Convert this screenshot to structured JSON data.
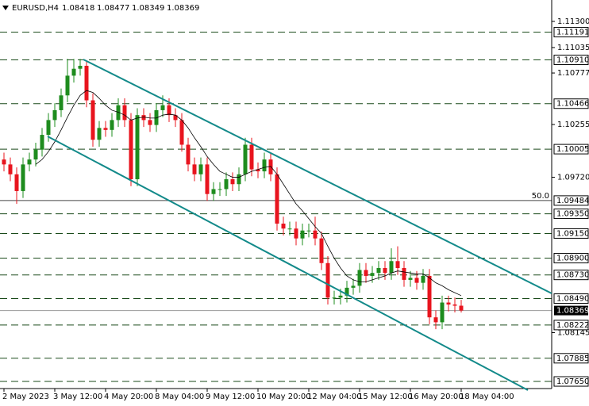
{
  "chart_data": {
    "type": "candlestick",
    "title": "EURUSD,H4",
    "categories": [
      "2 May 2023",
      null,
      null,
      null,
      null,
      null,
      null,
      null,
      "3 May 12:00",
      null,
      null,
      null,
      null,
      null,
      null,
      null,
      "4 May 20:00",
      null,
      null,
      null,
      null,
      null,
      null,
      null,
      "8 May 04:00",
      null,
      null,
      null,
      null,
      null,
      null,
      null,
      "9 May 12:00",
      null,
      null,
      null,
      null,
      null,
      null,
      null,
      "10 May 20:00",
      null,
      null,
      null,
      null,
      null,
      null,
      null,
      "12 May 04:00",
      null,
      null,
      null,
      null,
      null,
      null,
      null,
      "15 May 12:00",
      null,
      null,
      null,
      null,
      null,
      null,
      null,
      "16 May 20:00",
      null,
      null,
      null,
      null,
      null,
      null,
      null,
      "18 May 04:00"
    ],
    "open": [
      1.099,
      1.0985,
      1.0975,
      1.0958,
      1.0985,
      1.099,
      1.1,
      1.1015,
      1.103,
      1.104,
      1.1055,
      1.1075,
      1.1082,
      1.1085,
      1.105,
      1.101,
      1.1022,
      1.102,
      1.103,
      1.1045,
      1.103,
      1.097,
      1.1035,
      1.103,
      1.1025,
      1.104,
      1.1045,
      1.1035,
      1.103,
      1.1005,
      1.0985,
      1.0975,
      1.0985,
      1.0955,
      1.096,
      1.096,
      1.097,
      1.0965,
      1.0975,
      1.1005,
      1.098,
      1.0978,
      1.099,
      1.0975,
      1.0925,
      1.092,
      1.092,
      1.091,
      1.0918,
      1.0918,
      1.091,
      1.0885,
      1.085,
      1.085,
      1.0852,
      1.086,
      1.0862,
      1.0878,
      1.0872,
      1.0875,
      1.088,
      1.0875,
      1.0887,
      1.088,
      1.0868,
      1.087,
      1.0865,
      1.0872,
      1.083,
      1.0825,
      1.0845,
      1.0843,
      1.08418
    ],
    "high": [
      1.0997,
      1.0992,
      1.0982,
      1.0992,
      1.0997,
      1.1007,
      1.1022,
      1.1037,
      1.1047,
      1.1062,
      1.1092,
      1.1092,
      1.1092,
      1.109,
      1.1057,
      1.1029,
      1.1029,
      1.1037,
      1.1052,
      1.1052,
      1.1037,
      1.1042,
      1.1042,
      1.1037,
      1.1047,
      1.1055,
      1.1052,
      1.1042,
      1.1037,
      1.1012,
      1.0992,
      1.0992,
      1.0992,
      1.0967,
      1.0967,
      1.0977,
      1.0977,
      1.0982,
      1.1012,
      1.1012,
      1.0987,
      1.0997,
      1.0997,
      1.0982,
      1.0932,
      1.0927,
      1.0927,
      1.0925,
      1.0925,
      1.0932,
      1.0917,
      1.0892,
      1.0857,
      1.0859,
      1.0867,
      1.0869,
      1.0885,
      1.0885,
      1.0882,
      1.0887,
      1.0887,
      1.09,
      1.0902,
      1.0887,
      1.0877,
      1.0877,
      1.0879,
      1.0879,
      1.0837,
      1.0852,
      1.0852,
      1.085,
      1.08477
    ],
    "low": [
      1.0978,
      1.0968,
      1.0945,
      1.0951,
      1.0978,
      1.0983,
      1.0993,
      1.1008,
      1.1023,
      1.1033,
      1.1048,
      1.1068,
      1.1075,
      1.1043,
      1.1003,
      1.1003,
      1.1013,
      1.1013,
      1.1023,
      1.1023,
      1.0963,
      1.0963,
      1.1023,
      1.1018,
      1.1018,
      1.1033,
      1.1028,
      1.1023,
      1.0998,
      1.0978,
      1.0968,
      1.0968,
      1.0948,
      1.0948,
      1.0953,
      1.0953,
      1.0958,
      1.0958,
      1.0968,
      1.0973,
      1.0971,
      1.0971,
      1.0968,
      1.0918,
      1.0913,
      1.0913,
      1.0903,
      1.0903,
      1.0911,
      1.0903,
      1.0878,
      1.0843,
      1.0843,
      1.0843,
      1.0845,
      1.0853,
      1.0855,
      1.0865,
      1.0865,
      1.0868,
      1.0868,
      1.0868,
      1.0873,
      1.0861,
      1.0861,
      1.0858,
      1.0858,
      1.0823,
      1.0818,
      1.0818,
      1.0836,
      1.0835,
      1.08349
    ],
    "close": [
      1.0985,
      1.0975,
      1.0958,
      1.0985,
      1.099,
      1.1,
      1.1015,
      1.103,
      1.104,
      1.1055,
      1.1075,
      1.1082,
      1.1085,
      1.105,
      1.101,
      1.1022,
      1.102,
      1.103,
      1.1045,
      1.103,
      1.097,
      1.1035,
      1.103,
      1.1025,
      1.104,
      1.1045,
      1.1035,
      1.103,
      1.1005,
      1.0985,
      1.0975,
      1.0985,
      1.0955,
      1.096,
      1.096,
      1.097,
      1.0965,
      1.0975,
      1.1005,
      1.098,
      1.0978,
      1.099,
      1.0975,
      1.0925,
      1.092,
      1.092,
      1.091,
      1.0918,
      1.0918,
      1.091,
      1.0885,
      1.085,
      1.085,
      1.0852,
      1.086,
      1.0862,
      1.0878,
      1.0872,
      1.0875,
      1.088,
      1.0875,
      1.0887,
      1.088,
      1.0868,
      1.087,
      1.0865,
      1.0872,
      1.083,
      1.0825,
      1.0845,
      1.0843,
      1.08418,
      1.08369
    ],
    "ma": [
      null,
      null,
      null,
      null,
      null,
      1.0985,
      1.099,
      1.0998,
      1.1008,
      1.102,
      1.1033,
      1.1045,
      1.1055,
      1.106,
      1.1058,
      1.1052,
      1.1045,
      1.104,
      1.1038,
      1.1035,
      1.103,
      1.1032,
      1.1033,
      1.1032,
      1.1032,
      1.1035,
      1.1036,
      1.1035,
      1.103,
      1.1022,
      1.1012,
      1.1003,
      1.0993,
      1.0985,
      1.0978,
      1.0975,
      1.0972,
      1.0972,
      1.0975,
      1.0978,
      1.098,
      1.0982,
      1.0983,
      1.0975,
      1.0965,
      1.0955,
      1.0945,
      1.0938,
      1.093,
      1.0922,
      1.0915,
      1.0902,
      1.089,
      1.088,
      1.0872,
      1.0868,
      1.0866,
      1.0866,
      1.0868,
      1.087,
      1.0872,
      1.0875,
      1.0877,
      1.0876,
      1.0875,
      1.0874,
      1.0874,
      1.087,
      1.0865,
      1.0862,
      1.0858,
      1.0855,
      1.0852
    ],
    "up_color": "#1e8c1e",
    "down_color": "#e8141e",
    "ma_color": "#000000",
    "ylim": [
      1.07578,
      1.11517
    ],
    "yticks": [
      {
        "value": 1.113,
        "label": "1.11300"
      },
      {
        "value": 1.11035,
        "label": "1.11035"
      },
      {
        "value": 1.10777,
        "label": "1.10777"
      },
      {
        "value": 1.10255,
        "label": "1.10255"
      },
      {
        "value": 1.0972,
        "label": "1.09720"
      },
      {
        "value": 1.08145,
        "label": "1.08145"
      }
    ],
    "levels": [
      {
        "value": 1.11191,
        "label": "1.11191"
      },
      {
        "value": 1.1091,
        "label": "1.10910"
      },
      {
        "value": 1.10466,
        "label": "1.10466"
      },
      {
        "value": 1.10005,
        "label": "1.10005"
      },
      {
        "value": 1.09484,
        "label": "1.09484"
      },
      {
        "value": 1.0935,
        "label": "1.09350"
      },
      {
        "value": 1.0915,
        "label": "1.09150"
      },
      {
        "value": 1.089,
        "label": "1.08900"
      },
      {
        "value": 1.0873,
        "label": "1.08730"
      },
      {
        "value": 1.0849,
        "label": "1.08490"
      },
      {
        "value": 1.08222,
        "label": "1.08222"
      },
      {
        "value": 1.07885,
        "label": "1.07885"
      },
      {
        "value": 1.0765,
        "label": "1.07650"
      }
    ],
    "fib_label": "50.0",
    "fib_level": 4,
    "current": {
      "value": 1.08369,
      "label": "1.08369"
    }
  }
}
